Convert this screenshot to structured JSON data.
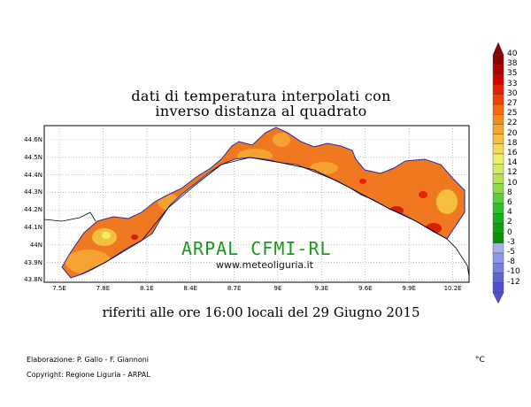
{
  "map": {
    "title_line1": "dati di temperatura interpolati con",
    "title_line2": "inverso distanza al quadrato",
    "subtitle": "riferiti alle ore 16:00 locali del 29 Giugno 2015",
    "watermark": "ARPAL CFMI-RL",
    "website": "www.meteoliguria.it",
    "credit_line1": "Elaborazione: P. Gallo - F. Giannoni",
    "credit_line2": "Copyright: Regione Liguria - ARPAL",
    "unit": "°C",
    "lat_labels": [
      "44.6N",
      "44.5N",
      "44.4N",
      "44.3N",
      "44.2N",
      "44.1N",
      "44N",
      "43.9N",
      "43.8N"
    ],
    "lon_labels": [
      "7.5E",
      "7.8E",
      "8.1E",
      "8.4E",
      "8.7E",
      "9E",
      "9.3E",
      "9.6E",
      "9.9E",
      "10.2E"
    ]
  },
  "colorbar": {
    "labels": [
      "40",
      "38",
      "35",
      "33",
      "30",
      "27",
      "25",
      "22",
      "20",
      "18",
      "16",
      "14",
      "12",
      "10",
      "8",
      "6",
      "4",
      "2",
      "0",
      "-3",
      "-5",
      "-8",
      "-10",
      "-12"
    ],
    "colors": [
      "#8b0000",
      "#b30000",
      "#d40000",
      "#e82000",
      "#f24000",
      "#f56a10",
      "#f58a22",
      "#f5a533",
      "#f5c040",
      "#f5d85a",
      "#eef06a",
      "#d4e86a",
      "#b8e05a",
      "#8ed84a",
      "#5ccc3a",
      "#30c030",
      "#18b018",
      "#10a010",
      "#0c900c",
      "#a6b0ee",
      "#8e98e6",
      "#7880dc",
      "#6266d4",
      "#5050cc"
    ]
  }
}
